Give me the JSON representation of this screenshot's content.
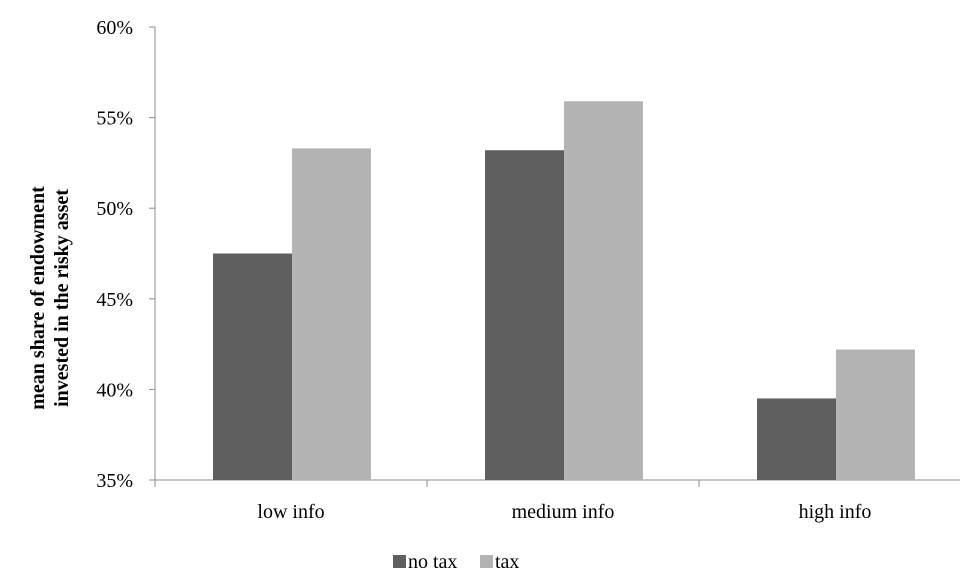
{
  "chart_data": {
    "type": "bar",
    "categories": [
      "low info",
      "medium info",
      "high info"
    ],
    "series": [
      {
        "name": "no tax",
        "values": [
          47.5,
          53.2,
          39.5
        ],
        "color": "#5f5f5f"
      },
      {
        "name": "tax",
        "values": [
          53.3,
          55.9,
          42.2
        ],
        "color": "#b3b3b3"
      }
    ],
    "ylabel_lines": [
      "mean share of endowment",
      "invested in the risky asset"
    ],
    "xlabel": "",
    "ylim": [
      35,
      60
    ],
    "yticks": [
      35,
      40,
      45,
      50,
      55,
      60
    ],
    "ytick_labels": [
      "35%",
      "40%",
      "45%",
      "50%",
      "55%",
      "60%"
    ],
    "grid": false,
    "legend_position": "bottom"
  }
}
